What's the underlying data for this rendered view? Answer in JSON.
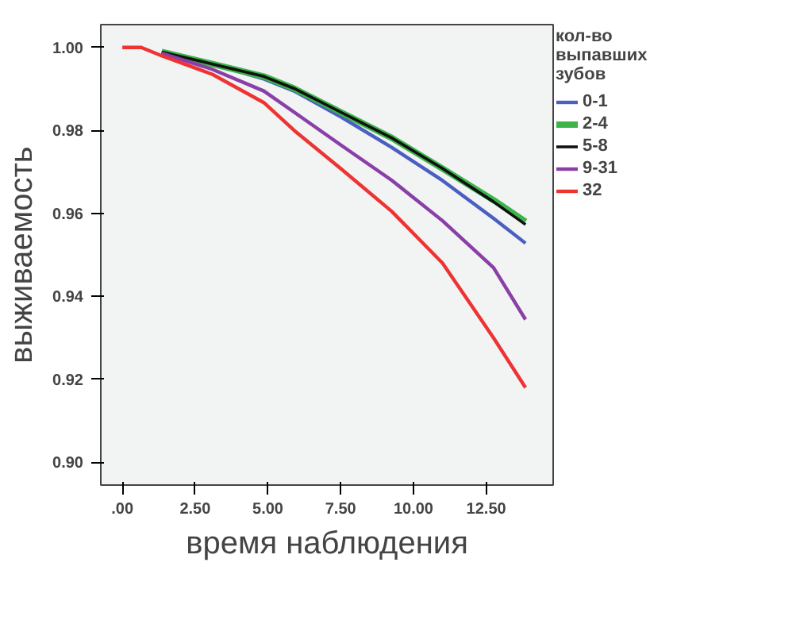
{
  "chart_data": {
    "type": "line",
    "xlabel": "время наблюдения",
    "ylabel": "выживаемость",
    "legend_title": "кол-во\nвыпавших\nзубов",
    "legend": "right",
    "x": [
      0,
      0.65,
      1.35,
      3.1,
      4.86,
      5.9,
      7.5,
      9.25,
      11,
      12.75,
      13.85
    ],
    "series": [
      {
        "name": "0-1",
        "color": "#4a5fc1",
        "values": [
          null,
          null,
          0.9986,
          0.996,
          0.9924,
          0.9895,
          0.9833,
          0.9759,
          0.9679,
          0.9588,
          0.9528
        ]
      },
      {
        "name": "2-4",
        "color": "#3cb44a",
        "values": [
          null,
          null,
          0.9989,
          0.996,
          0.993,
          0.9901,
          0.9844,
          0.9782,
          0.9708,
          0.9632,
          0.958
        ]
      },
      {
        "name": "5-8",
        "color": "#111111",
        "values": [
          null,
          null,
          0.9989,
          0.996,
          0.993,
          0.9901,
          0.9844,
          0.9782,
          0.9708,
          0.9628,
          0.9573
        ]
      },
      {
        "name": "9-31",
        "color": "#8a3fa8",
        "values": [
          null,
          null,
          0.9986,
          0.9947,
          0.9895,
          0.9844,
          0.9765,
          0.968,
          0.9582,
          0.9469,
          0.9344
        ]
      },
      {
        "name": "32",
        "color": "#ee3333",
        "values": [
          1.0,
          1.0,
          0.998,
          0.9935,
          0.9867,
          0.98,
          0.9708,
          0.9605,
          0.948,
          0.93,
          0.918
        ]
      }
    ],
    "xlim": [
      -0.74,
      14.8
    ],
    "ylim": [
      0.8945,
      1.0055
    ],
    "xticks": [
      {
        "value": 0,
        "label": ".00"
      },
      {
        "value": 2.5,
        "label": "2.50"
      },
      {
        "value": 5,
        "label": "5.00"
      },
      {
        "value": 7.5,
        "label": "7.50"
      },
      {
        "value": 10,
        "label": "10.00"
      },
      {
        "value": 12.5,
        "label": "12.50"
      }
    ],
    "yticks": [
      {
        "value": 0.9,
        "label": "0.90"
      },
      {
        "value": 0.92,
        "label": "0.92"
      },
      {
        "value": 0.94,
        "label": "0.94"
      },
      {
        "value": 0.96,
        "label": "0.96"
      },
      {
        "value": 0.98,
        "label": "0.98"
      },
      {
        "value": 1.0,
        "label": "1.00"
      }
    ],
    "line_style": "solid"
  }
}
